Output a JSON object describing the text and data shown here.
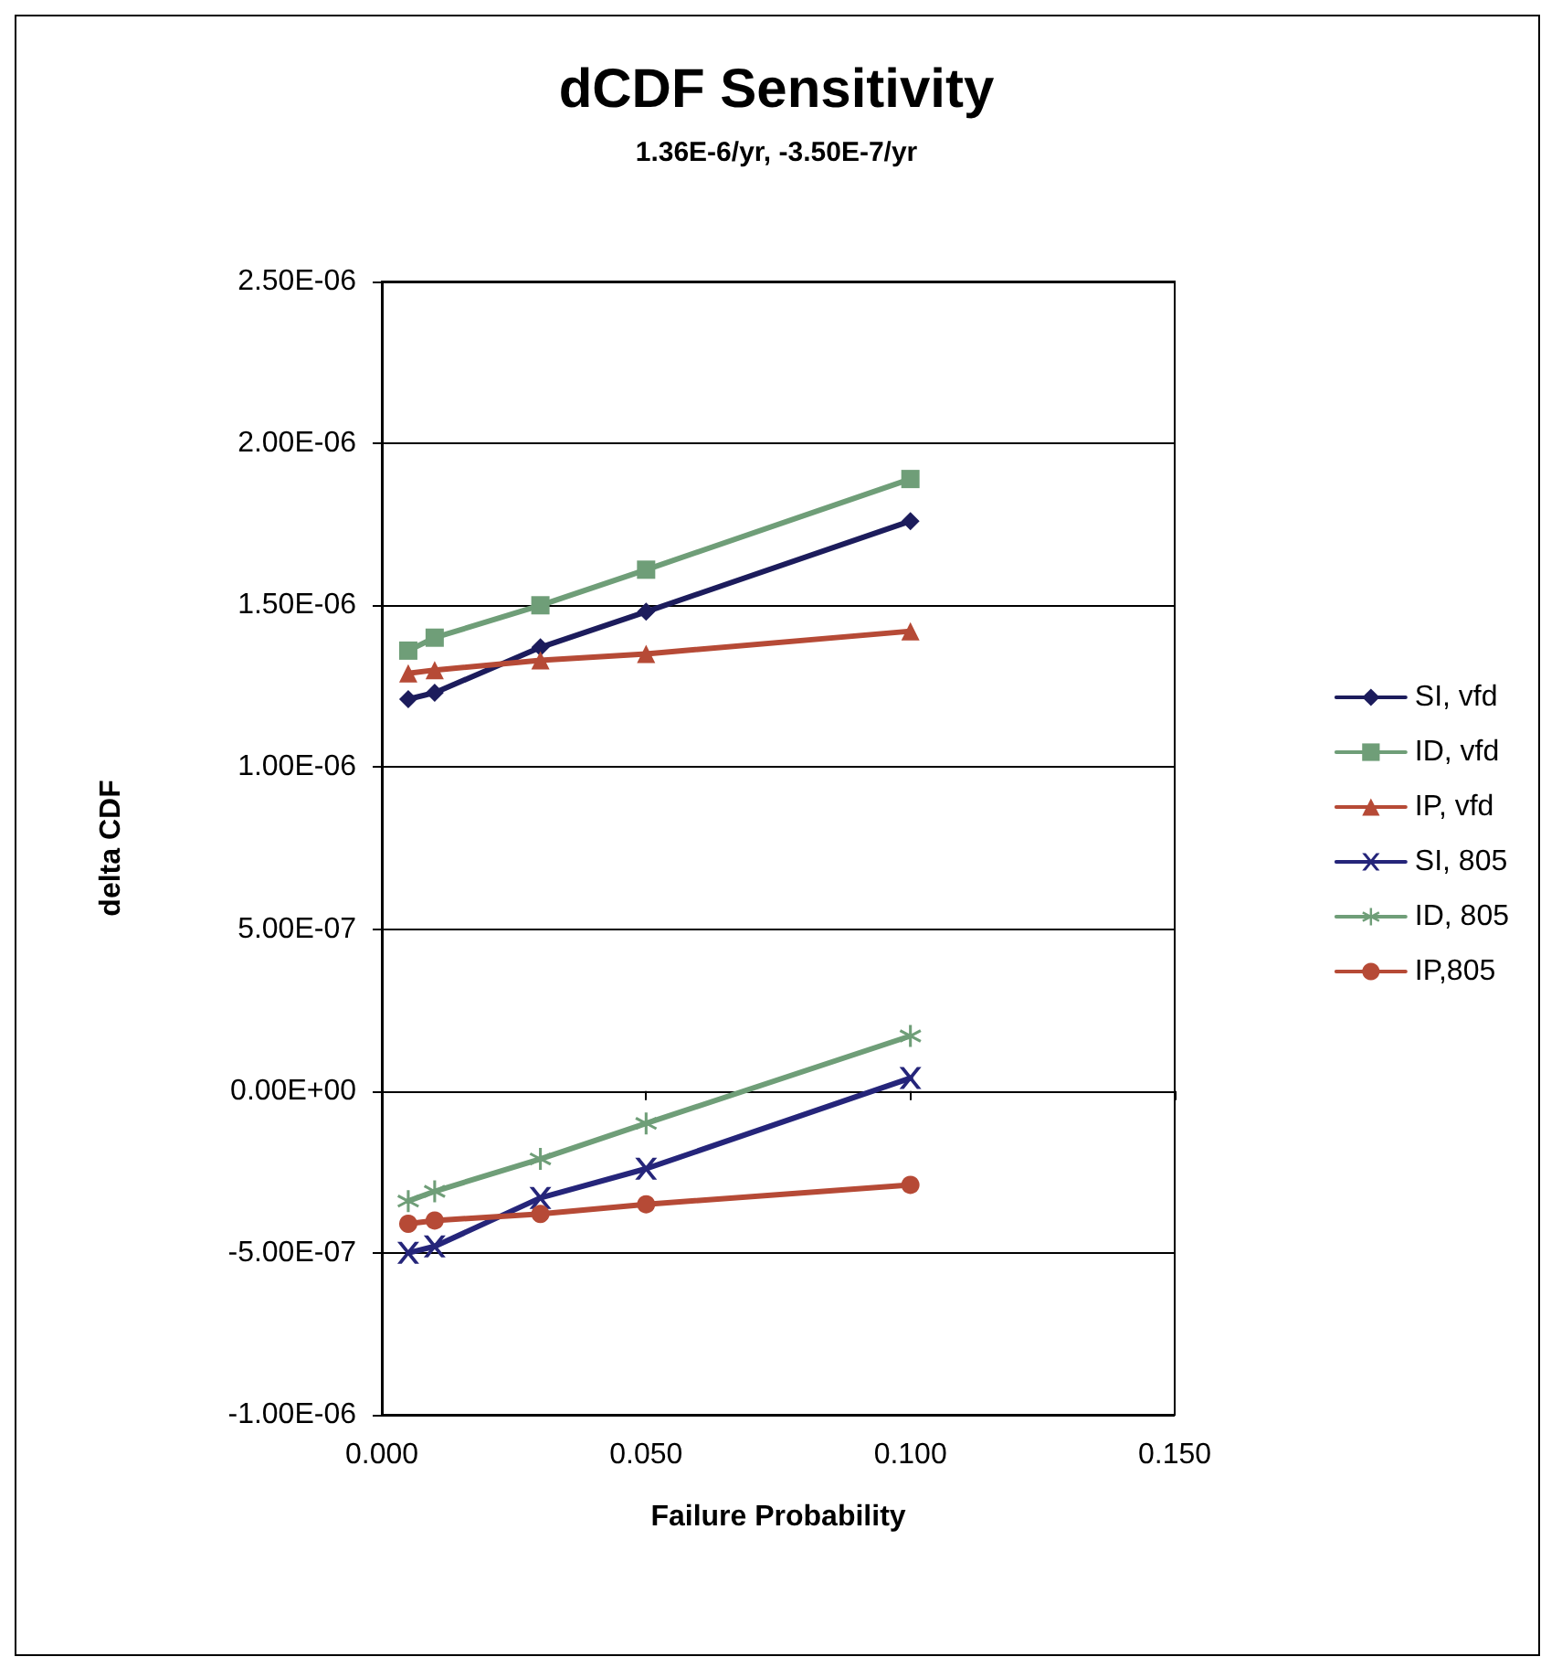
{
  "chart_data": {
    "type": "line",
    "title": "dCDF Sensitivity",
    "subtitle": "1.36E-6/yr, -3.50E-7/yr",
    "xlabel": "Failure Probability",
    "ylabel": "delta CDF",
    "x": [
      0.005,
      0.01,
      0.03,
      0.05,
      0.1
    ],
    "series": [
      {
        "name": "SI, vfd",
        "color": "#1c1c5c",
        "marker": "diamond",
        "values": [
          1.21e-06,
          1.23e-06,
          1.37e-06,
          1.48e-06,
          1.76e-06
        ]
      },
      {
        "name": "ID, vfd",
        "color": "#6f9e78",
        "marker": "square",
        "values": [
          1.36e-06,
          1.4e-06,
          1.5e-06,
          1.61e-06,
          1.89e-06
        ]
      },
      {
        "name": "IP, vfd",
        "color": "#b64a36",
        "marker": "triangle",
        "values": [
          1.29e-06,
          1.3e-06,
          1.33e-06,
          1.35e-06,
          1.42e-06
        ]
      },
      {
        "name": "SI, 805",
        "color": "#25257a",
        "marker": "cross",
        "values": [
          -5e-07,
          -4.8e-07,
          -3.3e-07,
          -2.4e-07,
          4e-08
        ]
      },
      {
        "name": "ID, 805",
        "color": "#6f9e78",
        "marker": "star",
        "values": [
          -3.4e-07,
          -3.1e-07,
          -2.1e-07,
          -1e-07,
          1.7e-07
        ]
      },
      {
        "name": "IP,805",
        "color": "#b64a36",
        "marker": "circle",
        "values": [
          -4.1e-07,
          -4e-07,
          -3.8e-07,
          -3.5e-07,
          -2.9e-07
        ]
      }
    ],
    "xlim": [
      0,
      0.15
    ],
    "xticks": [
      {
        "value": 0,
        "label": "0.000"
      },
      {
        "value": 0.05,
        "label": "0.050"
      },
      {
        "value": 0.1,
        "label": "0.100"
      },
      {
        "value": 0.15,
        "label": "0.150"
      }
    ],
    "ylim": [
      -1e-06,
      2.5e-06
    ],
    "yticks": [
      {
        "value": -1e-06,
        "label": "-1.00E-06"
      },
      {
        "value": -5e-07,
        "label": "-5.00E-07"
      },
      {
        "value": 0,
        "label": "0.00E+00"
      },
      {
        "value": 5e-07,
        "label": "5.00E-07"
      },
      {
        "value": 1e-06,
        "label": "1.00E-06"
      },
      {
        "value": 1.5e-06,
        "label": "1.50E-06"
      },
      {
        "value": 2e-06,
        "label": "2.00E-06"
      },
      {
        "value": 2.5e-06,
        "label": "2.50E-06"
      }
    ],
    "grid": "y",
    "legend": "right",
    "line_style": "solid"
  }
}
